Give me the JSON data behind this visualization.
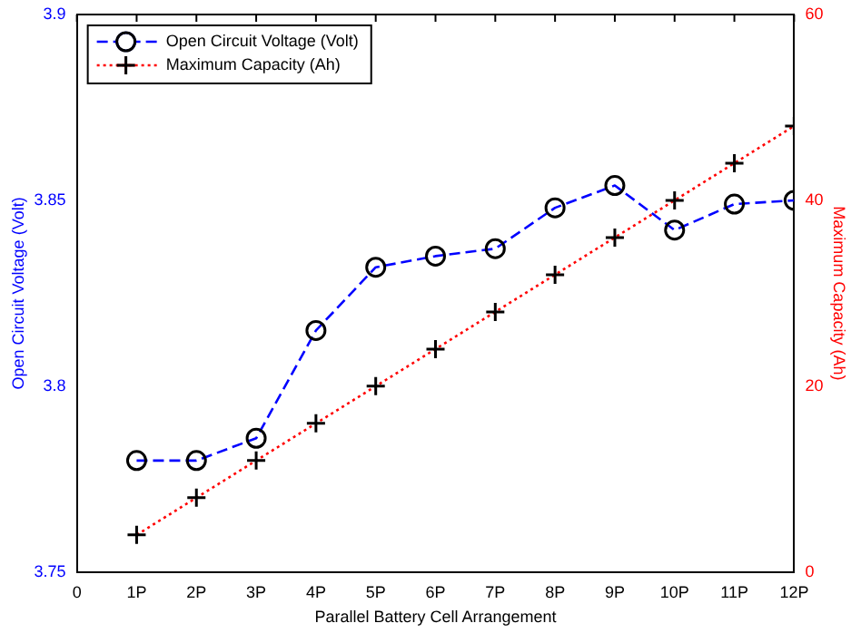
{
  "chart_data": {
    "type": "line",
    "xlabel": "Parallel Battery Cell Arrangement",
    "ylabel": "Open Circuit Voltage (Volt)",
    "y2label": "Maximum Capacity (Ah)",
    "x": [
      1,
      2,
      3,
      4,
      5,
      6,
      7,
      8,
      9,
      10,
      11,
      12
    ],
    "series": [
      {
        "name": "Open Circuit Voltage (Volt)",
        "color": "#0000ff",
        "marker": "circle",
        "line_style": "dashed",
        "values": [
          3.78,
          3.78,
          3.786,
          3.815,
          3.832,
          3.835,
          3.837,
          3.848,
          3.854,
          3.842,
          3.849,
          3.85
        ]
      },
      {
        "name": "Maximum Capacity (Ah)",
        "color": "#ff0000",
        "marker": "cross",
        "line_style": "dotted",
        "axis": "y2",
        "values": [
          4,
          8,
          12,
          16,
          20,
          24,
          28,
          32,
          36,
          40,
          44,
          48
        ]
      }
    ],
    "xlim": [
      0,
      12
    ],
    "xticks": [
      0,
      {
        "value": 1,
        "label": "1P"
      },
      {
        "value": 2,
        "label": "2P"
      },
      {
        "value": 3,
        "label": "3P"
      },
      {
        "value": 4,
        "label": "4P"
      },
      {
        "value": 5,
        "label": "5P"
      },
      {
        "value": 6,
        "label": "6P"
      },
      {
        "value": 7,
        "label": "7P"
      },
      {
        "value": 8,
        "label": "8P"
      },
      {
        "value": 9,
        "label": "9P"
      },
      {
        "value": 10,
        "label": "10P"
      },
      {
        "value": 11,
        "label": "11P"
      },
      {
        "value": 12,
        "label": "12P"
      }
    ],
    "ylim": [
      3.75,
      3.9
    ],
    "yticks": [
      3.75,
      3.8,
      3.85,
      3.9
    ],
    "y2lim": [
      0,
      60
    ],
    "y2ticks": [
      0,
      20,
      40,
      60
    ],
    "grid": false,
    "legend": "top left"
  }
}
